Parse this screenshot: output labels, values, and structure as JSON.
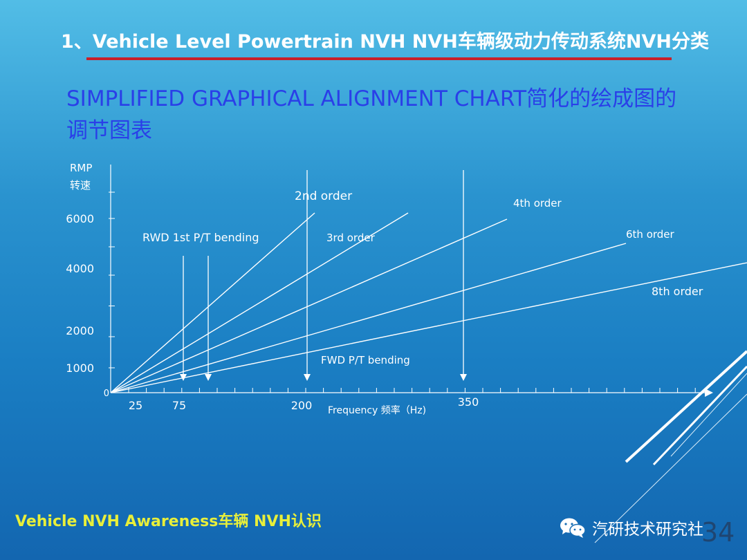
{
  "slide": {
    "title": "1、Vehicle Level Powertrain NVH  NVH车辆级动力传动系统NVH分类",
    "subtitle": "SIMPLIFIED GRAPHICAL ALIGNMENT CHART简化的绘成图的调节图表",
    "footer": "Vehicle NVH Awareness车辆 NVH认识",
    "brand": "汽研技术研究社",
    "brand_icon": "wechat-icon",
    "page_number": "34",
    "colors": {
      "title_rule": "#c8202a",
      "subtitle": "#2a3fe8",
      "footer": "#e8ef3a"
    }
  },
  "chart_data": {
    "type": "line",
    "xlabel": "Frequency 频率（Hz)",
    "ylabel": "RMP",
    "ylabel_cn": "转速",
    "x_ticks": [
      "25",
      "75",
      "200",
      "350"
    ],
    "y_ticks": [
      "0",
      "1000",
      "2000",
      "4000",
      "6000"
    ],
    "series": [
      {
        "name": "2nd order",
        "x": [
          0,
          200
        ],
        "y": [
          0,
          6000
        ]
      },
      {
        "name": "3rd order",
        "x": [
          0,
          300
        ],
        "y": [
          0,
          6000
        ]
      },
      {
        "name": "4th   order",
        "x": [
          0,
          380
        ],
        "y": [
          0,
          5700
        ]
      },
      {
        "name": "6th order",
        "x": [
          0,
          500
        ],
        "y": [
          0,
          5000
        ]
      },
      {
        "name": "8th order",
        "x": [
          0,
          640
        ],
        "y": [
          0,
          4800
        ]
      }
    ],
    "annotations": [
      {
        "label": "RWD 1st  P/T bending",
        "arrows_x": [
          70,
          95
        ]
      },
      {
        "label": "FWD P/T bending",
        "arrows_x": [
          195,
          355
        ]
      }
    ]
  }
}
